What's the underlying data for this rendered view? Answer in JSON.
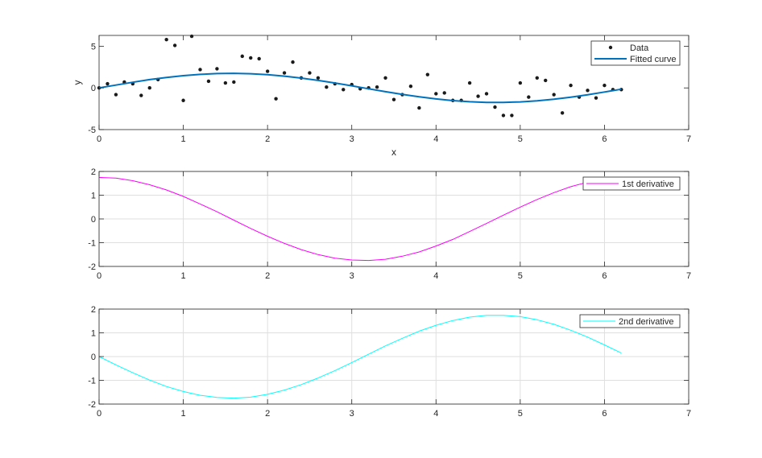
{
  "chart_data": [
    {
      "type": "scatter",
      "xlabel": "x",
      "ylabel": "y",
      "xlim": [
        0,
        7
      ],
      "ylim": [
        -5,
        6.3
      ],
      "xticks": [
        "0",
        "1",
        "2",
        "3",
        "4",
        "5",
        "6",
        "7"
      ],
      "yticks": [
        "-5",
        "0",
        "5"
      ],
      "ytick_values": [
        -5,
        0,
        5
      ],
      "grid": false,
      "legend": "top-right",
      "series": [
        {
          "name": "Data",
          "kind": "markers",
          "color": "#1a1a1a",
          "x": [
            0,
            0.1,
            0.2,
            0.3,
            0.4,
            0.5,
            0.6,
            0.7,
            0.8,
            0.9,
            1.0,
            1.1,
            1.2,
            1.3,
            1.4,
            1.5,
            1.6,
            1.7,
            1.8,
            1.9,
            2.0,
            2.1,
            2.2,
            2.3,
            2.4,
            2.5,
            2.6,
            2.7,
            2.8,
            2.9,
            3.0,
            3.1,
            3.2,
            3.3,
            3.4,
            3.5,
            3.6,
            3.7,
            3.8,
            3.9,
            4.0,
            4.1,
            4.2,
            4.3,
            4.4,
            4.5,
            4.6,
            4.7,
            4.8,
            4.9,
            5.0,
            5.1,
            5.2,
            5.3,
            5.4,
            5.5,
            5.6,
            5.7,
            5.8,
            5.9,
            6.0,
            6.1,
            6.2
          ],
          "y": [
            0.0,
            0.5,
            -0.8,
            0.7,
            0.5,
            -0.9,
            0.0,
            1.0,
            5.8,
            5.1,
            -1.5,
            6.2,
            2.2,
            0.8,
            2.3,
            0.6,
            0.7,
            3.8,
            3.6,
            3.5,
            2.0,
            -1.3,
            1.8,
            3.1,
            1.2,
            1.8,
            1.2,
            0.1,
            0.5,
            -0.2,
            0.4,
            -0.1,
            0.0,
            0.1,
            1.2,
            -1.4,
            -0.8,
            0.2,
            -2.4,
            1.6,
            -0.7,
            -0.6,
            -1.5,
            -1.5,
            0.6,
            -1.0,
            -0.7,
            -2.3,
            -3.3,
            -3.3,
            0.6,
            -1.1,
            1.2,
            0.9,
            -0.8,
            -3.0,
            0.3,
            -1.1,
            -0.3,
            -1.2,
            0.3,
            -0.2,
            -0.2
          ]
        },
        {
          "name": "Fitted curve",
          "kind": "line",
          "color": "#0072bd",
          "x": [
            0,
            0.2,
            0.4,
            0.6,
            0.8,
            1.0,
            1.2,
            1.4,
            1.6,
            1.8,
            2.0,
            2.2,
            2.4,
            2.6,
            2.8,
            3.0,
            3.2,
            3.4,
            3.6,
            3.8,
            4.0,
            4.2,
            4.4,
            4.6,
            4.8,
            5.0,
            5.2,
            5.4,
            5.6,
            5.8,
            6.0,
            6.2
          ],
          "y": [
            0.0,
            0.34,
            0.68,
            1.0,
            1.25,
            1.47,
            1.63,
            1.72,
            1.75,
            1.7,
            1.59,
            1.41,
            1.18,
            0.9,
            0.59,
            0.25,
            -0.1,
            -0.45,
            -0.77,
            -1.07,
            -1.32,
            -1.52,
            -1.66,
            -1.74,
            -1.74,
            -1.68,
            -1.55,
            -1.36,
            -1.11,
            -0.82,
            -0.49,
            -0.15
          ]
        }
      ]
    },
    {
      "type": "line",
      "xlim": [
        0,
        7
      ],
      "ylim": [
        -2,
        2
      ],
      "xticks": [
        "0",
        "1",
        "2",
        "3",
        "4",
        "5",
        "6",
        "7"
      ],
      "yticks": [
        "-2",
        "-1",
        "0",
        "1",
        "2"
      ],
      "ytick_values": [
        -2,
        -1,
        0,
        1,
        2
      ],
      "grid": true,
      "legend": "top-right",
      "series": [
        {
          "name": "1st derivative",
          "color": "#ff00ff",
          "x": [
            0,
            0.2,
            0.4,
            0.6,
            0.8,
            1.0,
            1.2,
            1.4,
            1.6,
            1.8,
            2.0,
            2.2,
            2.4,
            2.6,
            2.8,
            3.0,
            3.2,
            3.4,
            3.6,
            3.8,
            4.0,
            4.2,
            4.4,
            4.6,
            4.8,
            5.0,
            5.2,
            5.4,
            5.6,
            5.8,
            6.0,
            6.2
          ],
          "y": [
            1.75,
            1.72,
            1.61,
            1.44,
            1.22,
            0.95,
            0.63,
            0.3,
            -0.05,
            -0.4,
            -0.73,
            -1.03,
            -1.29,
            -1.5,
            -1.65,
            -1.73,
            -1.75,
            -1.7,
            -1.57,
            -1.39,
            -1.14,
            -0.86,
            -0.53,
            -0.19,
            0.16,
            0.5,
            0.82,
            1.11,
            1.36,
            1.55,
            1.68,
            1.75
          ]
        }
      ]
    },
    {
      "type": "line",
      "xlim": [
        0,
        7
      ],
      "ylim": [
        -2,
        2
      ],
      "xticks": [
        "0",
        "1",
        "2",
        "3",
        "4",
        "5",
        "6",
        "7"
      ],
      "yticks": [
        "-2",
        "-1",
        "0",
        "1",
        "2"
      ],
      "ytick_values": [
        -2,
        -1,
        0,
        1,
        2
      ],
      "grid": true,
      "legend": "top-right",
      "series": [
        {
          "name": "2nd derivative",
          "color": "#00ffff",
          "x": [
            0,
            0.2,
            0.4,
            0.6,
            0.8,
            1.0,
            1.2,
            1.4,
            1.6,
            1.8,
            2.0,
            2.2,
            2.4,
            2.6,
            2.8,
            3.0,
            3.2,
            3.4,
            3.6,
            3.8,
            4.0,
            4.2,
            4.4,
            4.6,
            4.8,
            5.0,
            5.2,
            5.4,
            5.6,
            5.8,
            6.0,
            6.2
          ],
          "y": [
            0.0,
            -0.35,
            -0.68,
            -0.99,
            -1.26,
            -1.47,
            -1.63,
            -1.72,
            -1.75,
            -1.71,
            -1.59,
            -1.41,
            -1.18,
            -0.9,
            -0.59,
            -0.25,
            0.1,
            0.45,
            0.77,
            1.07,
            1.32,
            1.52,
            1.66,
            1.74,
            1.74,
            1.68,
            1.55,
            1.36,
            1.11,
            0.82,
            0.49,
            0.15
          ]
        }
      ]
    }
  ]
}
